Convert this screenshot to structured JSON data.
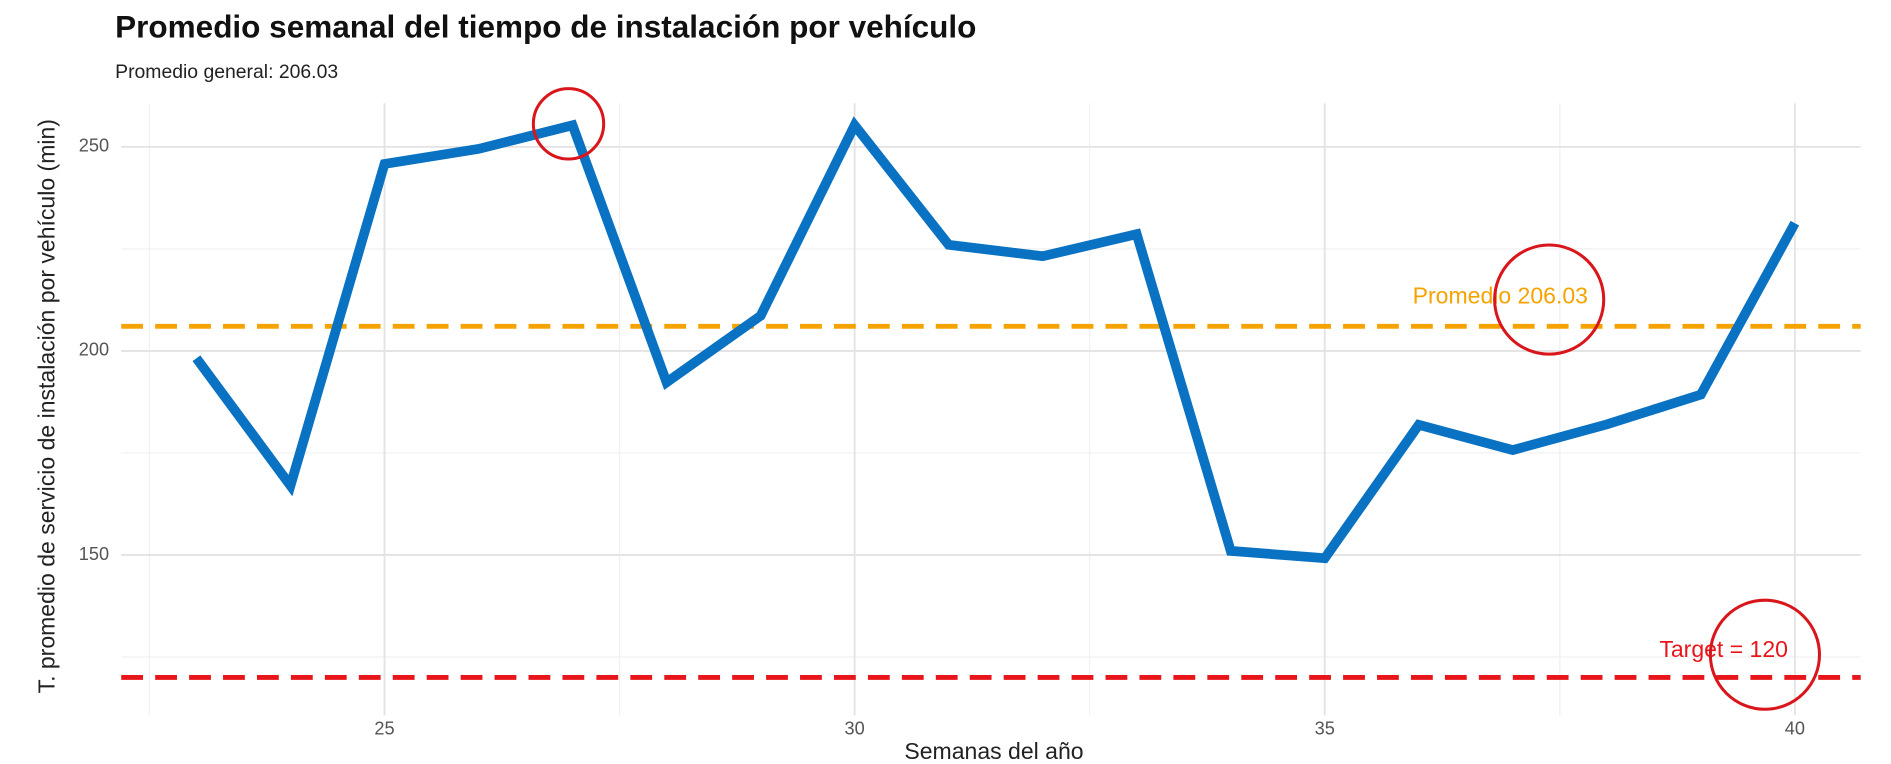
{
  "chart_data": {
    "type": "line",
    "title": "Promedio semanal del tiempo de instalación por vehículo",
    "subtitle": "Promedio general: 206.03",
    "x_label": "Semanas del año",
    "y_label": "T. promedio de servicio de instalación por vehículo (min)",
    "x": [
      23,
      24,
      25,
      26,
      27,
      28,
      29,
      30,
      31,
      32,
      33,
      34,
      35,
      36,
      37,
      38,
      39,
      40
    ],
    "series": [
      {
        "name": "Promedio semanal",
        "color": "#0a72c2",
        "values": [
          198.2,
          167,
          245.8,
          249.5,
          255.3,
          192.3,
          208.6,
          255.3,
          226,
          223.2,
          228.6,
          151,
          149.2,
          181.9,
          175.7,
          182,
          189.3,
          231.3
        ]
      }
    ],
    "xlim": [
      22.2,
      40.7
    ],
    "xticks": [
      25,
      30,
      35,
      40
    ],
    "minor_xticks": [
      22.5,
      27.5,
      32.5,
      37.5
    ],
    "ylim": [
      110.7,
      260.7
    ],
    "yticks": [
      150,
      200,
      250
    ],
    "minor_yticks": [
      125,
      175,
      225
    ],
    "grid": true,
    "reference_lines": [
      {
        "value": 206.03,
        "label": "Promedio 206.03",
        "color": "#f5a300"
      },
      {
        "value": 120,
        "label": "Target = 120",
        "color": "#e8161b"
      }
    ]
  }
}
